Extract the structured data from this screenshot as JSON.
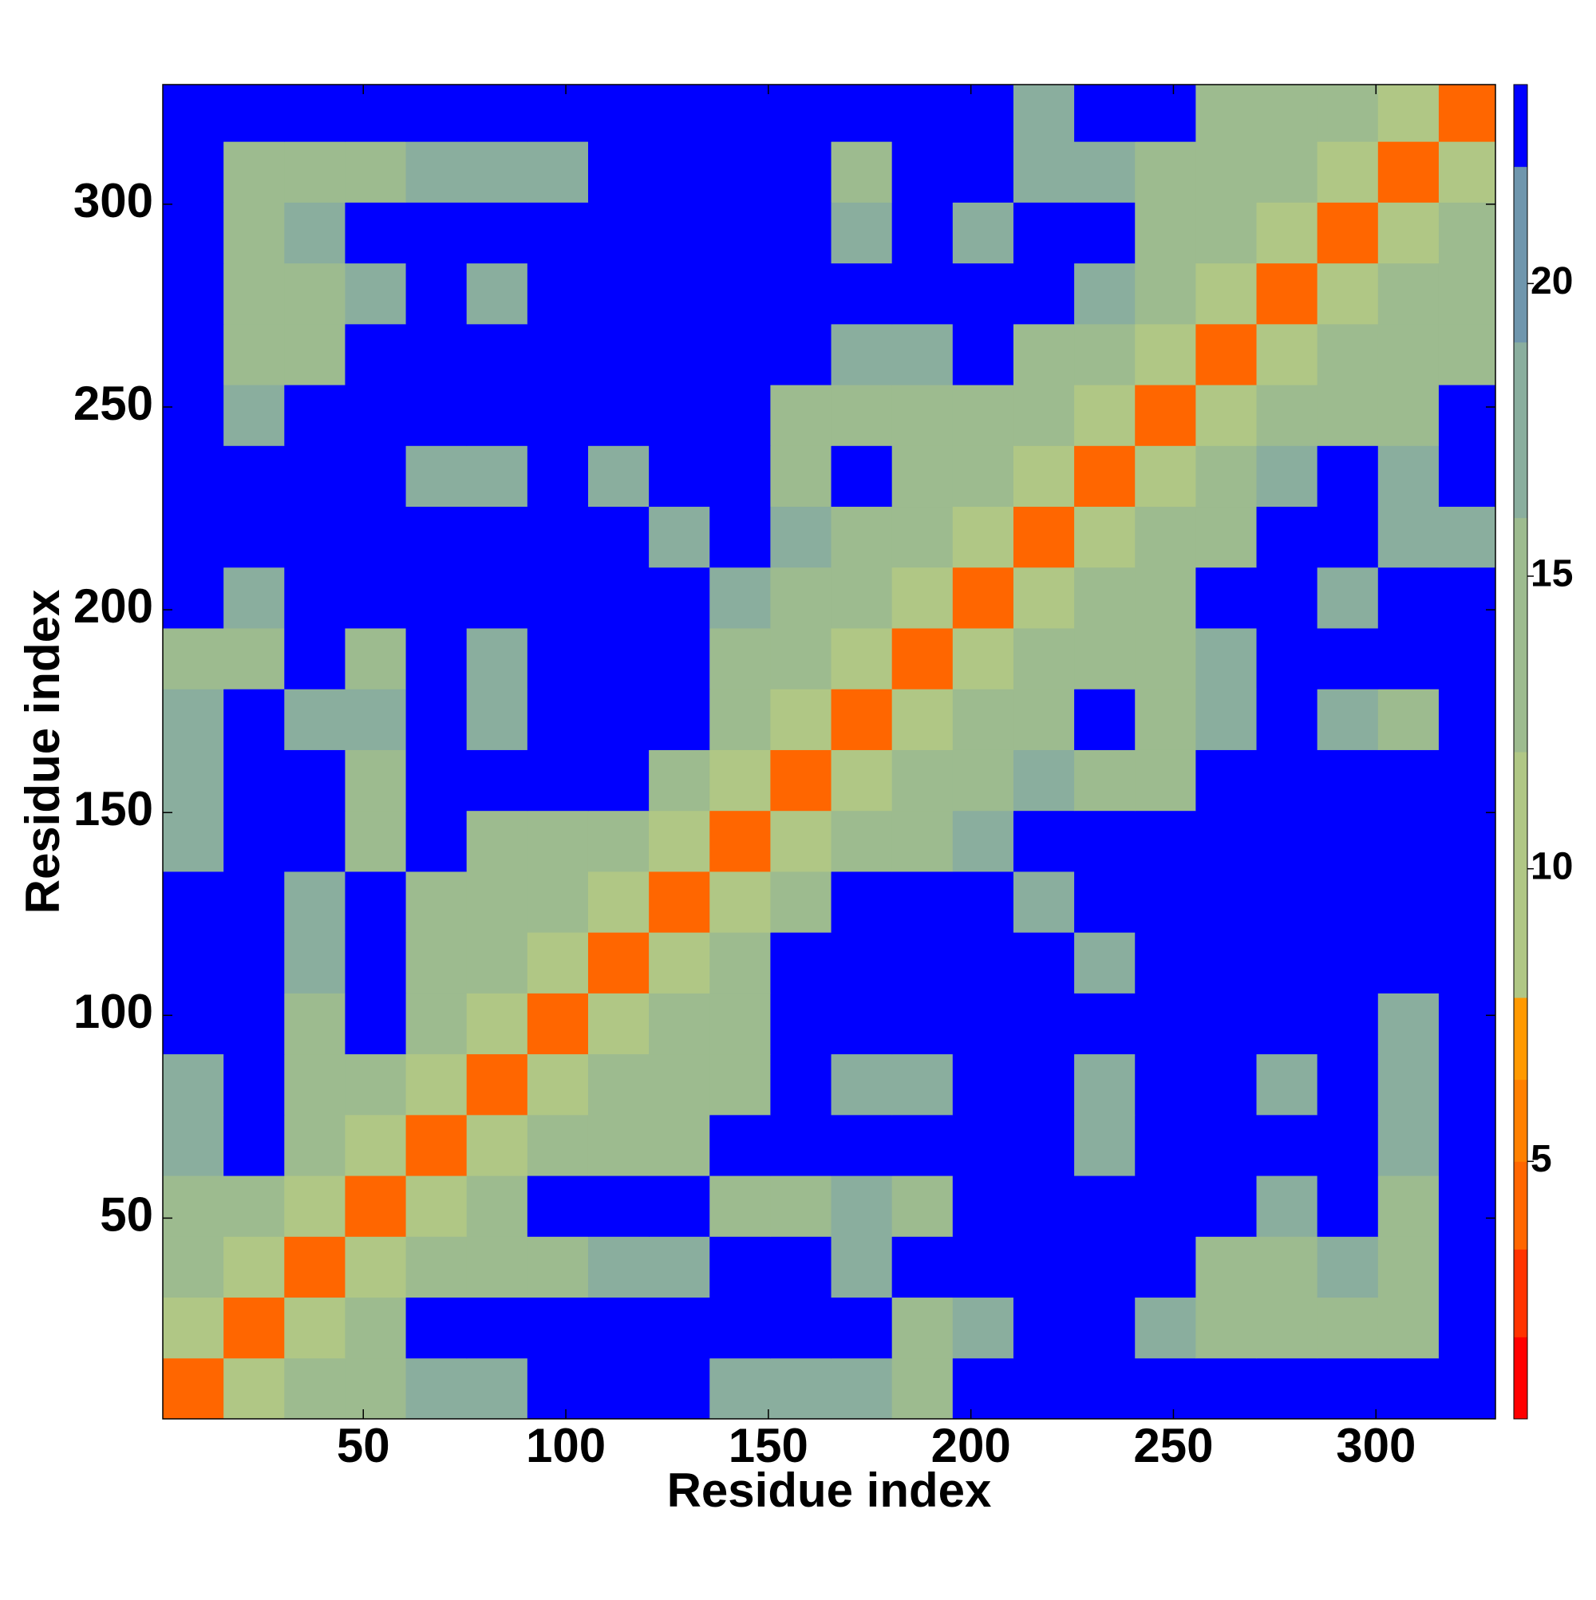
{
  "chart_data": {
    "type": "heatmap",
    "xlabel": "Residue index",
    "ylabel": "Residue index",
    "xlim": [
      0.5,
      329.5
    ],
    "ylim": [
      0.5,
      329.5
    ],
    "xticks": [
      50,
      100,
      150,
      200,
      250,
      300
    ],
    "yticks": [
      50,
      100,
      150,
      200,
      250,
      300
    ],
    "x_edges": [
      0.5,
      15.5,
      30.5,
      45.5,
      60.5,
      75.5,
      90.5,
      105.5,
      120.5,
      135.5,
      150.5,
      165.5,
      180.5,
      195.5,
      210.5,
      225.5,
      240.5,
      255.5,
      270.5,
      285.5,
      300.5,
      315.5,
      330.5
    ],
    "y_edges": [
      0.5,
      15.5,
      30.5,
      45.5,
      60.5,
      75.5,
      90.5,
      105.5,
      120.5,
      135.5,
      150.5,
      165.5,
      180.5,
      195.5,
      210.5,
      225.5,
      240.5,
      255.5,
      270.5,
      285.5,
      300.5,
      315.5,
      330.5
    ],
    "z": [
      [
        4,
        11,
        14,
        15,
        18,
        18,
        23,
        23,
        23,
        16,
        16,
        16,
        15,
        23,
        23,
        23,
        23,
        23,
        23,
        23,
        23,
        23
      ],
      [
        11,
        4,
        11,
        13,
        23,
        23,
        23,
        23,
        23,
        23,
        23,
        23,
        15,
        16,
        23,
        23,
        16,
        15,
        14,
        14,
        13,
        23
      ],
      [
        14,
        11,
        4,
        11,
        14,
        14,
        14,
        17,
        17,
        23,
        23,
        17,
        23,
        23,
        23,
        23,
        23,
        14,
        15,
        16,
        13,
        23
      ],
      [
        15,
        13,
        11,
        4,
        11,
        13,
        23,
        23,
        23,
        15,
        15,
        16,
        15,
        23,
        23,
        23,
        23,
        23,
        18,
        23,
        15,
        23
      ],
      [
        18,
        23,
        14,
        11,
        4,
        11,
        13,
        13,
        14,
        23,
        23,
        23,
        23,
        23,
        23,
        16,
        23,
        23,
        23,
        23,
        17,
        23
      ],
      [
        18,
        23,
        14,
        13,
        11,
        4,
        11,
        13,
        14,
        15,
        23,
        17,
        17,
        23,
        23,
        16,
        23,
        23,
        17,
        23,
        16,
        23
      ],
      [
        23,
        23,
        14,
        23,
        13,
        11,
        4,
        11,
        12,
        14,
        23,
        23,
        23,
        23,
        23,
        23,
        23,
        23,
        23,
        23,
        17,
        23
      ],
      [
        23,
        23,
        17,
        23,
        13,
        13,
        11,
        4,
        11,
        13,
        23,
        23,
        23,
        23,
        23,
        17,
        23,
        23,
        23,
        23,
        23,
        23
      ],
      [
        23,
        23,
        17,
        23,
        14,
        14,
        12,
        11,
        4,
        11,
        14,
        23,
        23,
        23,
        17,
        23,
        23,
        23,
        23,
        23,
        23,
        23
      ],
      [
        16,
        23,
        23,
        15,
        23,
        15,
        14,
        13,
        11,
        4,
        11,
        14,
        15,
        16,
        23,
        23,
        23,
        23,
        23,
        23,
        23,
        23
      ],
      [
        16,
        23,
        23,
        15,
        23,
        23,
        23,
        23,
        14,
        11,
        4,
        11,
        12,
        14,
        16,
        15,
        14,
        23,
        23,
        23,
        23,
        23
      ],
      [
        16,
        23,
        17,
        16,
        23,
        17,
        23,
        23,
        23,
        14,
        11,
        4,
        11,
        13,
        15,
        23,
        15,
        16,
        23,
        16,
        14,
        23
      ],
      [
        15,
        15,
        23,
        15,
        23,
        17,
        23,
        23,
        23,
        15,
        12,
        11,
        4,
        11,
        13,
        14,
        14,
        16,
        23,
        23,
        23,
        23
      ],
      [
        23,
        16,
        23,
        23,
        23,
        23,
        23,
        23,
        23,
        16,
        14,
        13,
        11,
        4,
        11,
        12,
        14,
        23,
        23,
        16,
        23,
        23
      ],
      [
        23,
        23,
        23,
        23,
        23,
        23,
        23,
        23,
        17,
        23,
        16,
        15,
        13,
        11,
        4,
        11,
        12,
        15,
        23,
        23,
        17,
        16
      ],
      [
        23,
        23,
        23,
        23,
        16,
        16,
        23,
        17,
        23,
        23,
        15,
        23,
        14,
        12,
        11,
        4,
        11,
        13,
        16,
        23,
        16,
        23
      ],
      [
        23,
        16,
        23,
        23,
        23,
        23,
        23,
        23,
        23,
        23,
        14,
        15,
        14,
        14,
        12,
        11,
        4,
        11,
        12,
        15,
        14,
        23
      ],
      [
        23,
        15,
        14,
        23,
        23,
        23,
        23,
        23,
        23,
        23,
        23,
        16,
        16,
        23,
        15,
        13,
        11,
        4,
        11,
        13,
        14,
        14
      ],
      [
        23,
        14,
        15,
        18,
        23,
        17,
        23,
        23,
        23,
        23,
        23,
        23,
        23,
        23,
        23,
        16,
        12,
        11,
        4,
        11,
        12,
        15
      ],
      [
        23,
        14,
        16,
        23,
        23,
        23,
        23,
        23,
        23,
        23,
        23,
        16,
        23,
        16,
        23,
        23,
        15,
        13,
        11,
        4,
        11,
        13
      ],
      [
        23,
        13,
        13,
        15,
        17,
        16,
        17,
        23,
        23,
        23,
        23,
        14,
        23,
        23,
        17,
        16,
        14,
        14,
        12,
        11,
        4,
        11
      ],
      [
        23,
        23,
        23,
        23,
        23,
        23,
        23,
        23,
        23,
        23,
        23,
        23,
        23,
        23,
        16,
        23,
        23,
        14,
        15,
        13,
        11,
        4
      ]
    ],
    "colorbar": {
      "levels": [
        0.6,
        2,
        3.5,
        5,
        6.4,
        7.8,
        12,
        16,
        19,
        22,
        23.4
      ],
      "colors": [
        "#ff0000",
        "#ff3300",
        "#ff6600",
        "#ff8000",
        "#ff9900",
        "#b0c785",
        "#9dbb8f",
        "#8aae9e",
        "#6f96ad",
        "#0000ff"
      ],
      "ticks": [
        5,
        10,
        15,
        20
      ]
    }
  }
}
